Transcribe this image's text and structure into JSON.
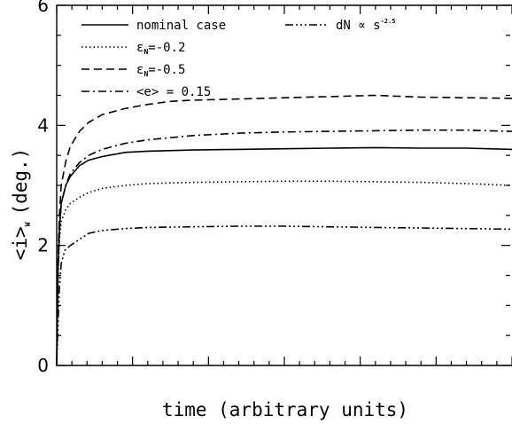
{
  "chart_data": {
    "type": "line",
    "title": "",
    "xlabel": "time (arbitrary units)",
    "ylabel": {
      "main": "<i>",
      "sub": "W",
      "unit": "(deg.)"
    },
    "ylim": [
      0,
      6
    ],
    "yticks": [
      "0",
      "2",
      "4",
      "6"
    ],
    "xlim": [
      0,
      1
    ],
    "grid": false,
    "legend_placement": "top-left",
    "series": [
      {
        "name": "nominal case",
        "legend": {
          "text": "nominal case"
        },
        "dash": "none",
        "x": [
          0,
          0.003,
          0.006,
          0.01,
          0.02,
          0.03,
          0.05,
          0.07,
          0.1,
          0.15,
          0.2,
          0.3,
          0.4,
          0.5,
          0.6,
          0.7,
          0.8,
          0.9,
          1.0
        ],
        "y": [
          0,
          1.6,
          2.3,
          2.7,
          3.0,
          3.15,
          3.33,
          3.42,
          3.48,
          3.55,
          3.57,
          3.59,
          3.6,
          3.61,
          3.62,
          3.63,
          3.62,
          3.62,
          3.6
        ]
      },
      {
        "name": "ε_N=-0.2",
        "legend": {
          "eps": "ε",
          "sub": "N",
          "rest": "=-0.2"
        },
        "dash": "1.5,3",
        "x": [
          0,
          0.003,
          0.006,
          0.01,
          0.02,
          0.03,
          0.05,
          0.07,
          0.1,
          0.15,
          0.2,
          0.3,
          0.4,
          0.5,
          0.6,
          0.7,
          0.8,
          0.9,
          1.0
        ],
        "y": [
          0,
          1.5,
          2.1,
          2.4,
          2.6,
          2.7,
          2.8,
          2.88,
          2.95,
          3.0,
          3.03,
          3.05,
          3.06,
          3.07,
          3.07,
          3.06,
          3.05,
          3.03,
          3.0
        ]
      },
      {
        "name": "ε_N=-0.5",
        "legend": {
          "eps": "ε",
          "sub": "N",
          "rest": "=-0.5"
        },
        "dash": "9,5",
        "x": [
          0,
          0.003,
          0.006,
          0.01,
          0.02,
          0.03,
          0.05,
          0.07,
          0.1,
          0.15,
          0.2,
          0.25,
          0.3,
          0.4,
          0.5,
          0.6,
          0.7,
          0.8,
          0.9,
          1.0
        ],
        "y": [
          0,
          1.8,
          2.5,
          3.0,
          3.4,
          3.65,
          3.9,
          4.05,
          4.18,
          4.28,
          4.35,
          4.4,
          4.42,
          4.44,
          4.46,
          4.48,
          4.5,
          4.47,
          4.46,
          4.45
        ]
      },
      {
        "name": "<e> = 0.15",
        "legend": {
          "text": "<e> = 0.15"
        },
        "dash": "9,4,2,4",
        "x": [
          0,
          0.003,
          0.006,
          0.01,
          0.02,
          0.03,
          0.05,
          0.07,
          0.1,
          0.15,
          0.2,
          0.3,
          0.4,
          0.5,
          0.6,
          0.7,
          0.8,
          0.9,
          1.0
        ],
        "y": [
          0,
          1.5,
          2.2,
          2.7,
          3.0,
          3.2,
          3.38,
          3.5,
          3.6,
          3.7,
          3.76,
          3.83,
          3.87,
          3.89,
          3.9,
          3.91,
          3.92,
          3.92,
          3.9
        ]
      },
      {
        "name": "dN ∝ s^-2.5",
        "legend": {
          "text": "dN ∝ s",
          "sup": "-2.5"
        },
        "dash": "9,3,2,3,2,3,2,3",
        "x": [
          0,
          0.003,
          0.006,
          0.01,
          0.018,
          0.03,
          0.05,
          0.07,
          0.1,
          0.15,
          0.2,
          0.3,
          0.4,
          0.5,
          0.6,
          0.7,
          0.8,
          0.9,
          1.0
        ],
        "y": [
          0,
          0.7,
          1.3,
          1.7,
          1.92,
          2.0,
          2.1,
          2.2,
          2.25,
          2.28,
          2.3,
          2.31,
          2.32,
          2.32,
          2.31,
          2.3,
          2.29,
          2.28,
          2.27
        ]
      }
    ]
  }
}
